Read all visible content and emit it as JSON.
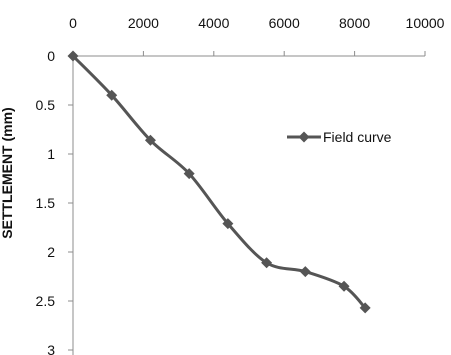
{
  "chart_data": {
    "type": "line",
    "title": "",
    "xlabel": "",
    "ylabel": "SETTLEMENT (mm)",
    "x_axis_position": "top",
    "y_axis_inverted": true,
    "xlim": [
      0,
      10000
    ],
    "ylim": [
      0,
      3
    ],
    "x_ticks": [
      0,
      2000,
      4000,
      6000,
      8000,
      10000
    ],
    "x_tick_labels": [
      "0",
      "2000",
      "4000",
      "6000",
      "8000",
      "10000"
    ],
    "y_ticks": [
      0,
      0.5,
      1,
      1.5,
      2,
      2.5,
      3
    ],
    "y_tick_labels": [
      "0",
      "0.5",
      "1",
      "1.5",
      "2",
      "2.5",
      "3"
    ],
    "grid": false,
    "legend_position": "right",
    "series": [
      {
        "name": "Field curve",
        "color": "#555555",
        "marker": "diamond",
        "x": [
          0,
          1100,
          2200,
          3300,
          4400,
          5500,
          6600,
          7700,
          8300
        ],
        "y": [
          0,
          0.4,
          0.86,
          1.2,
          1.71,
          2.11,
          2.2,
          2.35,
          2.57
        ]
      }
    ]
  }
}
